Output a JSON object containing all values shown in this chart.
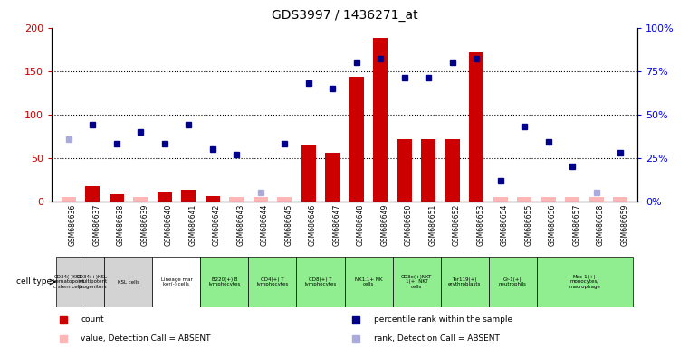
{
  "title": "GDS3997 / 1436271_at",
  "gsm_labels": [
    "GSM686636",
    "GSM686637",
    "GSM686638",
    "GSM686639",
    "GSM686640",
    "GSM686641",
    "GSM686642",
    "GSM686643",
    "GSM686644",
    "GSM686645",
    "GSM686646",
    "GSM686647",
    "GSM686648",
    "GSM686649",
    "GSM686650",
    "GSM686651",
    "GSM686652",
    "GSM686653",
    "GSM686654",
    "GSM686655",
    "GSM686656",
    "GSM686657",
    "GSM686658",
    "GSM686659"
  ],
  "count_values": [
    5,
    17,
    8,
    5,
    10,
    13,
    6,
    5,
    5,
    5,
    65,
    56,
    143,
    188,
    72,
    72,
    72,
    172,
    5,
    5,
    5,
    5,
    5,
    5
  ],
  "count_absent": [
    true,
    false,
    false,
    true,
    false,
    false,
    false,
    true,
    true,
    true,
    false,
    false,
    false,
    false,
    false,
    false,
    false,
    false,
    true,
    true,
    true,
    true,
    true,
    true
  ],
  "percentile_values": [
    36,
    44,
    33,
    40,
    33,
    44,
    30,
    27,
    5,
    33,
    68,
    65,
    80,
    82,
    71,
    71,
    80,
    82,
    12,
    43,
    34,
    20,
    5,
    28
  ],
  "percentile_absent": [
    true,
    false,
    false,
    false,
    false,
    false,
    false,
    false,
    true,
    false,
    false,
    false,
    false,
    false,
    false,
    false,
    false,
    false,
    false,
    false,
    false,
    false,
    true,
    false
  ],
  "cell_type_groups": [
    {
      "label": "CD34(-)KSL\nhematopoiet\nc stem cells",
      "start": 0,
      "end": 0,
      "color": "#d3d3d3"
    },
    {
      "label": "CD34(+)KSL\nmultipotent\nprogenitors",
      "start": 1,
      "end": 1,
      "color": "#d3d3d3"
    },
    {
      "label": "KSL cells",
      "start": 2,
      "end": 3,
      "color": "#d3d3d3"
    },
    {
      "label": "Lineage mar\nker(-) cells",
      "start": 4,
      "end": 5,
      "color": "#ffffff"
    },
    {
      "label": "B220(+) B\nlymphocytes",
      "start": 6,
      "end": 7,
      "color": "#90ee90"
    },
    {
      "label": "CD4(+) T\nlymphocytes",
      "start": 8,
      "end": 9,
      "color": "#90ee90"
    },
    {
      "label": "CD8(+) T\nlymphocytes",
      "start": 10,
      "end": 11,
      "color": "#90ee90"
    },
    {
      "label": "NK1.1+ NK\ncells",
      "start": 12,
      "end": 13,
      "color": "#90ee90"
    },
    {
      "label": "CD3e(+)NKT\n1(+) NKT\ncells",
      "start": 14,
      "end": 15,
      "color": "#90ee90"
    },
    {
      "label": "Ter119(+)\nerythroblasts",
      "start": 16,
      "end": 17,
      "color": "#90ee90"
    },
    {
      "label": "Gr-1(+)\nneutrophils",
      "start": 18,
      "end": 19,
      "color": "#90ee90"
    },
    {
      "label": "Mac-1(+)\nmonocytes/\nmacrophage",
      "start": 20,
      "end": 23,
      "color": "#90ee90"
    }
  ],
  "ylim_left": [
    0,
    200
  ],
  "ylim_right": [
    0,
    100
  ],
  "yticks_left": [
    0,
    50,
    100,
    150,
    200
  ],
  "yticks_right": [
    0,
    25,
    50,
    75,
    100
  ],
  "yticklabels_right": [
    "0%",
    "25%",
    "50%",
    "75%",
    "100%"
  ],
  "bar_color_present": "#cc0000",
  "bar_color_absent": "#ffb6b6",
  "dot_color_present": "#00008b",
  "dot_color_absent": "#aaaadd",
  "background_color": "#ffffff"
}
